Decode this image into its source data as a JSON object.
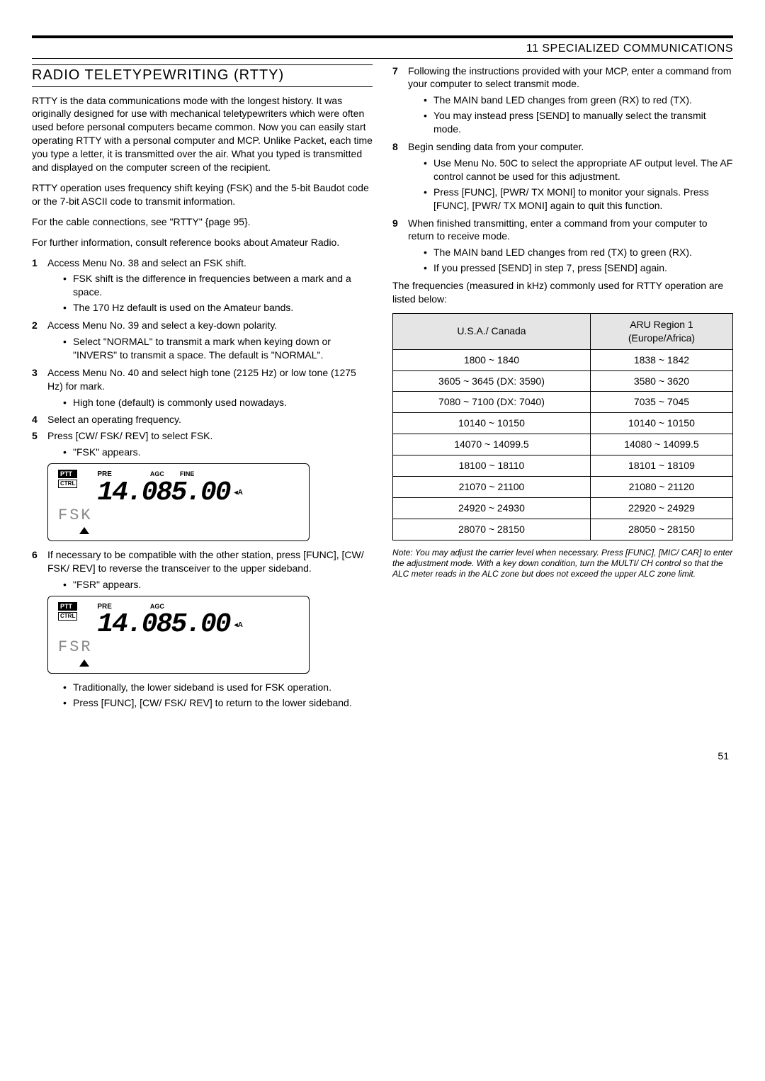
{
  "chapter": "11  SPECIALIZED COMMUNICATIONS",
  "section_title": "RADIO TELETYPEWRITING (RTTY)",
  "left": {
    "intro1": "RTTY is the data communications mode with the longest history.  It was originally designed for use with mechanical teletypewriters which were often used before personal computers became common.  Now you can easily start operating RTTY with a personal computer and MCP.  Unlike Packet, each time you type a letter, it is transmitted over the air.  What you typed is transmitted and displayed on the computer screen of the recipient.",
    "intro2": "RTTY operation uses frequency shift keying (FSK) and the 5-bit Baudot code or the 7-bit ASCII code to transmit information.",
    "intro3": "For the cable connections, see \"RTTY\" {page 95}.",
    "intro4": "For further information, consult reference books about Amateur Radio.",
    "step1": "Access Menu No. 38 and select an FSK shift.",
    "step1_b1": "FSK shift is the difference in frequencies between a mark and a space.",
    "step1_b2": "The 170 Hz default is used on the Amateur bands.",
    "step2": "Access Menu No. 39 and select a key-down polarity.",
    "step2_b1": "Select \"NORMAL\" to transmit a mark when keying down or \"INVERS\" to transmit a space.  The default is \"NORMAL\".",
    "step3": "Access Menu No. 40 and select high tone (2125 Hz) or low tone (1275 Hz) for mark.",
    "step3_b1": "High tone (default) is commonly used nowadays.",
    "step4": "Select an operating frequency.",
    "step5": "Press [CW/ FSK/ REV] to select FSK.",
    "step5_b1": "\"FSK\" appears.",
    "step6": "If necessary to be compatible with the other station, press [FUNC], [CW/ FSK/ REV] to reverse the transceiver to the upper sideband.",
    "step6_b1": "\"FSR\" appears.",
    "step6_b2": "Traditionally, the lower sideband is used for FSK operation.",
    "step6_b3": "Press [FUNC], [CW/ FSK/ REV] to return to the lower sideband."
  },
  "right": {
    "step7": "Following the instructions provided with your MCP, enter a command from your computer to select transmit mode.",
    "step7_b1": "The MAIN band LED changes from green (RX) to red (TX).",
    "step7_b2": "You may instead press [SEND] to manually select the transmit mode.",
    "step8": "Begin sending data from your computer.",
    "step8_b1": "Use Menu No. 50C to select the appropriate AF output level.  The AF control cannot be used for this adjustment.",
    "step8_b2": "Press [FUNC], [PWR/ TX MONI] to monitor your signals.  Press [FUNC], [PWR/ TX MONI] again to quit this function.",
    "step9": "When finished transmitting, enter a command from your computer to return to receive mode.",
    "step9_b1": "The MAIN band LED changes from red (TX) to green (RX).",
    "step9_b2": "If you pressed [SEND] in step 7, press [SEND] again.",
    "freq_intro": "The frequencies (measured in kHz) commonly used for RTTY operation are listed below:",
    "note": "Note:  You may adjust the carrier level when necessary.  Press [FUNC], [MIC/ CAR] to enter the adjustment mode.  With a key down condition, turn the MULTI/ CH control so that the ALC meter reads in the ALC zone but does not exceed the upper ALC zone limit."
  },
  "lcd1": {
    "ptt": "PTT",
    "ctrl": "CTRL",
    "pre": "PRE",
    "agc": "AGC",
    "fine": "FINE",
    "freq": "14.085.00",
    "a": "◂A",
    "mode": "FSK"
  },
  "lcd2": {
    "ptt": "PTT",
    "ctrl": "CTRL",
    "pre": "PRE",
    "agc": "AGC",
    "freq": "14.085.00",
    "a": "◂A",
    "mode": "FSR"
  },
  "freq_table": {
    "header_left": "U.S.A./ Canada",
    "header_right": "ARU Region 1\n(Europe/Africa)",
    "rows": [
      [
        "1800 ~ 1840",
        "1838 ~ 1842"
      ],
      [
        "3605 ~ 3645 (DX: 3590)",
        "3580 ~ 3620"
      ],
      [
        "7080 ~ 7100 (DX: 7040)",
        "7035 ~ 7045"
      ],
      [
        "10140 ~ 10150",
        "10140 ~ 10150"
      ],
      [
        "14070 ~ 14099.5",
        "14080 ~ 14099.5"
      ],
      [
        "18100 ~ 18110",
        "18101 ~ 18109"
      ],
      [
        "21070 ~ 21100",
        "21080 ~ 21120"
      ],
      [
        "24920 ~ 24930",
        "22920 ~ 24929"
      ],
      [
        "28070 ~ 28150",
        "28050 ~ 28150"
      ]
    ]
  },
  "page_number": "51"
}
